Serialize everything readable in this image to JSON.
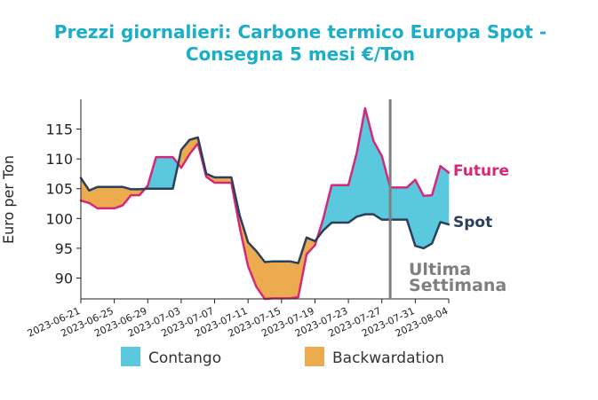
{
  "chart_data": {
    "type": "area",
    "title_lines": [
      "Prezzi giornalieri: Carbone termico Europa Spot -",
      "Consegna 5 mesi €/Ton"
    ],
    "ylabel": "Euro per Ton",
    "ylim": [
      86.5,
      120
    ],
    "yticks": [
      90,
      95,
      100,
      105,
      110,
      115
    ],
    "xlim": [
      "2023-06-21",
      "2023-08-04"
    ],
    "xticks": [
      "2023-06-21",
      "2023-06-25",
      "2023-06-29",
      "2023-07-03",
      "2023-07-07",
      "2023-07-11",
      "2023-07-15",
      "2023-07-19",
      "2023-07-23",
      "2023-07-27",
      "2023-07-31",
      "2023-08-04"
    ],
    "series": [
      {
        "name": "Future",
        "color": "#d6287a",
        "points": [
          [
            "2023-06-21",
            103.0
          ],
          [
            "2023-06-22",
            102.6
          ],
          [
            "2023-06-23",
            101.7
          ],
          [
            "2023-06-24",
            101.7
          ],
          [
            "2023-06-25",
            101.7
          ],
          [
            "2023-06-26",
            102.2
          ],
          [
            "2023-06-27",
            103.9
          ],
          [
            "2023-06-28",
            103.9
          ],
          [
            "2023-06-29",
            105.5
          ],
          [
            "2023-06-30",
            110.3
          ],
          [
            "2023-07-01",
            110.3
          ],
          [
            "2023-07-02",
            110.3
          ],
          [
            "2023-07-03",
            108.5
          ],
          [
            "2023-07-04",
            110.8
          ],
          [
            "2023-07-05",
            112.6
          ],
          [
            "2023-07-06",
            107.0
          ],
          [
            "2023-07-07",
            106.0
          ],
          [
            "2023-07-08",
            106.0
          ],
          [
            "2023-07-09",
            106.0
          ],
          [
            "2023-07-10",
            98.5
          ],
          [
            "2023-07-11",
            92.0
          ],
          [
            "2023-07-12",
            88.5
          ],
          [
            "2023-07-13",
            86.5
          ],
          [
            "2023-07-14",
            86.6
          ],
          [
            "2023-07-15",
            86.6
          ],
          [
            "2023-07-16",
            86.6
          ],
          [
            "2023-07-17",
            86.8
          ],
          [
            "2023-07-18",
            94.0
          ],
          [
            "2023-07-19",
            95.5
          ],
          [
            "2023-07-20",
            100.0
          ],
          [
            "2023-07-21",
            105.6
          ],
          [
            "2023-07-22",
            105.6
          ],
          [
            "2023-07-23",
            105.6
          ],
          [
            "2023-07-24",
            111.0
          ],
          [
            "2023-07-25",
            118.5
          ],
          [
            "2023-07-26",
            113.0
          ],
          [
            "2023-07-27",
            110.5
          ],
          [
            "2023-07-28",
            105.2
          ],
          [
            "2023-07-29",
            105.2
          ],
          [
            "2023-07-30",
            105.2
          ],
          [
            "2023-07-31",
            106.5
          ],
          [
            "2023-08-01",
            103.8
          ],
          [
            "2023-08-02",
            103.9
          ],
          [
            "2023-08-03",
            108.8
          ],
          [
            "2023-08-04",
            107.7
          ]
        ]
      },
      {
        "name": "Spot",
        "color": "#2b3f5c",
        "points": [
          [
            "2023-06-21",
            106.8
          ],
          [
            "2023-06-22",
            104.7
          ],
          [
            "2023-06-23",
            105.3
          ],
          [
            "2023-06-24",
            105.3
          ],
          [
            "2023-06-25",
            105.3
          ],
          [
            "2023-06-26",
            105.3
          ],
          [
            "2023-06-27",
            104.9
          ],
          [
            "2023-06-28",
            104.9
          ],
          [
            "2023-06-29",
            105.0
          ],
          [
            "2023-06-30",
            105.0
          ],
          [
            "2023-07-01",
            105.0
          ],
          [
            "2023-07-02",
            105.0
          ],
          [
            "2023-07-03",
            111.5
          ],
          [
            "2023-07-04",
            113.2
          ],
          [
            "2023-07-05",
            113.6
          ],
          [
            "2023-07-06",
            107.5
          ],
          [
            "2023-07-07",
            106.9
          ],
          [
            "2023-07-08",
            106.9
          ],
          [
            "2023-07-09",
            106.9
          ],
          [
            "2023-07-10",
            100.5
          ],
          [
            "2023-07-11",
            96.0
          ],
          [
            "2023-07-12",
            94.5
          ],
          [
            "2023-07-13",
            92.7
          ],
          [
            "2023-07-14",
            92.8
          ],
          [
            "2023-07-15",
            92.8
          ],
          [
            "2023-07-16",
            92.8
          ],
          [
            "2023-07-17",
            92.5
          ],
          [
            "2023-07-18",
            96.8
          ],
          [
            "2023-07-19",
            96.2
          ],
          [
            "2023-07-20",
            98.0
          ],
          [
            "2023-07-21",
            99.3
          ],
          [
            "2023-07-22",
            99.3
          ],
          [
            "2023-07-23",
            99.3
          ],
          [
            "2023-07-24",
            100.3
          ],
          [
            "2023-07-25",
            100.7
          ],
          [
            "2023-07-26",
            100.7
          ],
          [
            "2023-07-27",
            99.8
          ],
          [
            "2023-07-28",
            99.8
          ],
          [
            "2023-07-29",
            99.8
          ],
          [
            "2023-07-30",
            99.8
          ],
          [
            "2023-07-31",
            95.4
          ],
          [
            "2023-08-01",
            95.0
          ],
          [
            "2023-08-02",
            95.8
          ],
          [
            "2023-08-03",
            99.4
          ],
          [
            "2023-08-04",
            99.0
          ]
        ]
      }
    ],
    "fills": {
      "contango_color": "#5bc9dd",
      "backwardation_color": "#ecab4e"
    },
    "vline": {
      "x": "2023-07-28",
      "color": "#7f7f7f"
    },
    "annotation_lines": [
      "Ultima",
      "Settimana"
    ],
    "legend": [
      {
        "label": "Contango",
        "color": "#5bc9dd"
      },
      {
        "label": "Backwardation",
        "color": "#ecab4e"
      }
    ],
    "legend_position": "bottom"
  }
}
